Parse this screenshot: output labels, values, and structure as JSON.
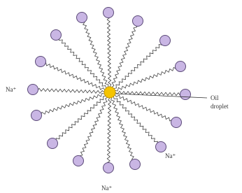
{
  "labels": {
    "sodium_left": "Na⁺",
    "sodium_right": "Na⁺",
    "sodium_bottom": "Na⁺",
    "oil_line1": "Oil",
    "oil_line2": "droplet"
  }
}
